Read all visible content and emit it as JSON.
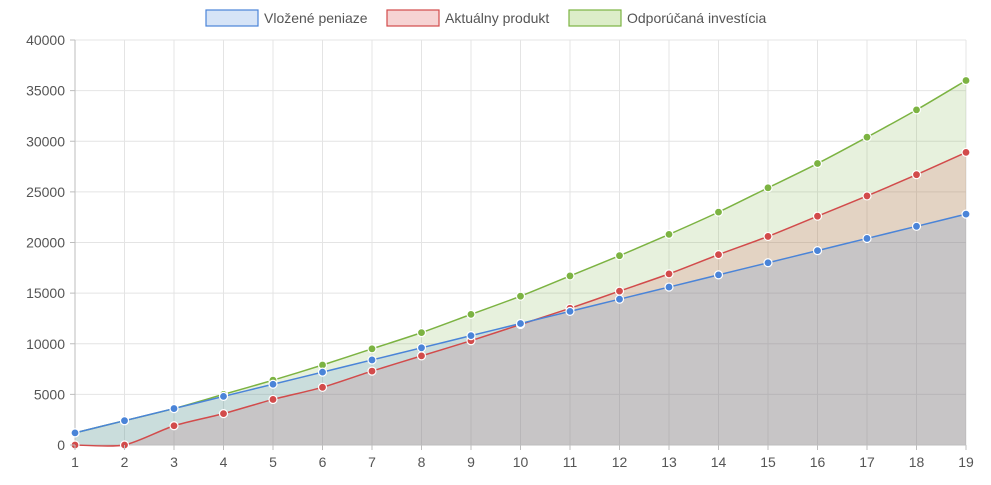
{
  "chart_data": {
    "type": "area",
    "x": [
      1,
      2,
      3,
      4,
      5,
      6,
      7,
      8,
      9,
      10,
      11,
      12,
      13,
      14,
      15,
      16,
      17,
      18,
      19
    ],
    "ylim": [
      0,
      40000
    ],
    "yticks": [
      0,
      5000,
      10000,
      15000,
      20000,
      25000,
      30000,
      35000,
      40000
    ],
    "grid": true,
    "legend_position": "top",
    "series": [
      {
        "name": "Vložené peniaze",
        "line_color": "#4a84d8",
        "fill_color": "#d6e4f7",
        "values": [
          1200,
          2400,
          3600,
          4800,
          6000,
          7200,
          8400,
          9600,
          10800,
          12000,
          13200,
          14400,
          15600,
          16800,
          18000,
          19200,
          20400,
          21600,
          22800
        ]
      },
      {
        "name": "Aktuálny produkt",
        "line_color": "#d24b4b",
        "fill_color": "#f6d3d3",
        "values": [
          0,
          0,
          1900,
          3100,
          4500,
          5700,
          7300,
          8800,
          10300,
          11900,
          13500,
          15200,
          16900,
          18800,
          20600,
          22600,
          24600,
          26700,
          28900
        ]
      },
      {
        "name": "Odporúčaná investícia",
        "line_color": "#7cb342",
        "fill_color": "#dcedc8",
        "values": [
          1200,
          2400,
          3600,
          5000,
          6400,
          7900,
          9500,
          11100,
          12900,
          14700,
          16700,
          18700,
          20800,
          23000,
          25400,
          27800,
          30400,
          33100,
          36000
        ]
      }
    ]
  }
}
